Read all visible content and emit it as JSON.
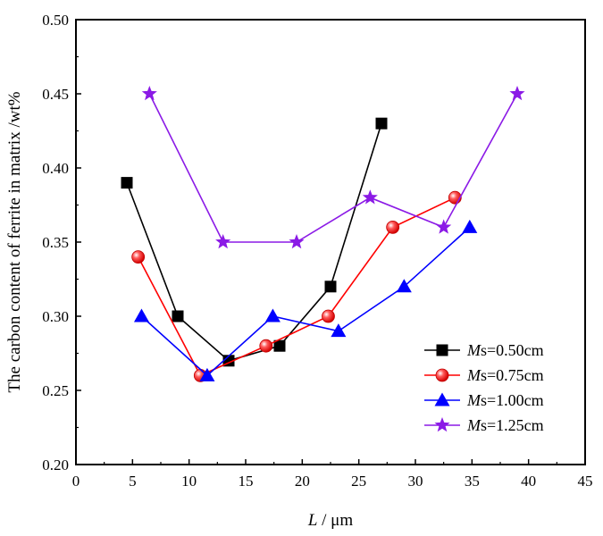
{
  "chart_data": {
    "type": "line",
    "xlabel_italic": "L",
    "xlabel_rest": " / μm",
    "ylabel": "The carbon content of ferrite in matrix /wt%",
    "xlim": [
      0,
      45
    ],
    "ylim": [
      0.2,
      0.5
    ],
    "xticks": [
      "0",
      "5",
      "10",
      "15",
      "20",
      "25",
      "30",
      "35",
      "40",
      "45"
    ],
    "yticks": [
      "0.20",
      "0.25",
      "0.30",
      "0.35",
      "0.40",
      "0.45",
      "0.50"
    ],
    "grid": false,
    "legend_position": "bottom-right",
    "series": [
      {
        "name_italic": "M",
        "name_rest": "s=0.50cm",
        "color": "#000000",
        "marker": "square",
        "points": [
          [
            4.5,
            0.39
          ],
          [
            9.0,
            0.3
          ],
          [
            13.5,
            0.27
          ],
          [
            18.0,
            0.28
          ],
          [
            22.5,
            0.32
          ],
          [
            27.0,
            0.43
          ]
        ]
      },
      {
        "name_italic": "M",
        "name_rest": "s=0.75cm",
        "color": "#ff0000",
        "marker": "circle",
        "points": [
          [
            5.5,
            0.34
          ],
          [
            11.0,
            0.26
          ],
          [
            16.8,
            0.28
          ],
          [
            22.3,
            0.3
          ],
          [
            28.0,
            0.36
          ],
          [
            33.5,
            0.38
          ]
        ]
      },
      {
        "name_italic": "M",
        "name_rest": "s=1.00cm",
        "color": "#0000ff",
        "marker": "triangle",
        "points": [
          [
            5.8,
            0.3
          ],
          [
            11.6,
            0.26
          ],
          [
            17.4,
            0.3
          ],
          [
            23.2,
            0.29
          ],
          [
            29.0,
            0.32
          ],
          [
            34.8,
            0.36
          ]
        ]
      },
      {
        "name_italic": "M",
        "name_rest": "s=1.25cm",
        "color": "#8b1ae6",
        "marker": "star",
        "points": [
          [
            6.5,
            0.45
          ],
          [
            13.0,
            0.35
          ],
          [
            19.5,
            0.35
          ],
          [
            26.0,
            0.38
          ],
          [
            32.5,
            0.36
          ],
          [
            39.0,
            0.45
          ]
        ]
      }
    ]
  }
}
